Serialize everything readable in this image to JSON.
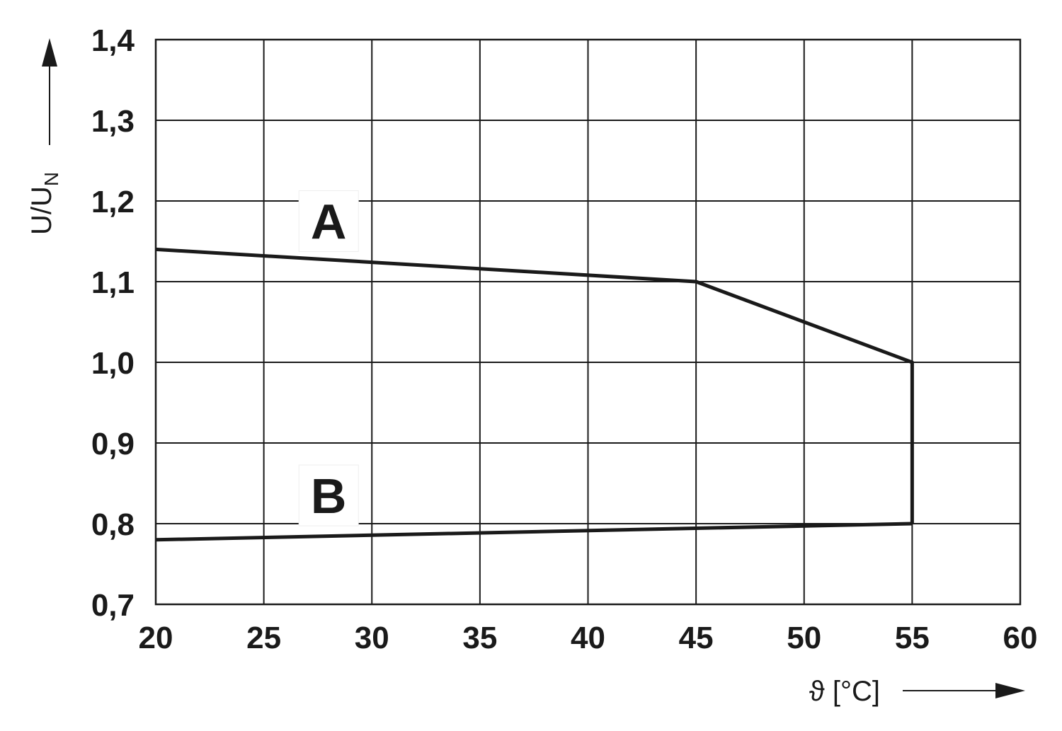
{
  "chart_data": {
    "type": "line",
    "xlabel": "ϑ [°C]",
    "ylabel": "U/U",
    "ylabel_sub": "N",
    "xlim": [
      20,
      60
    ],
    "ylim": [
      0.7,
      1.4
    ],
    "x_ticks": [
      20,
      25,
      30,
      35,
      40,
      45,
      50,
      55,
      60
    ],
    "y_ticks": [
      0.7,
      0.8,
      0.9,
      1.0,
      1.1,
      1.2,
      1.3,
      1.4
    ],
    "x_tick_labels": [
      "20",
      "25",
      "30",
      "35",
      "40",
      "45",
      "50",
      "55",
      "60"
    ],
    "y_tick_labels": [
      "0,7",
      "0,8",
      "0,9",
      "1,0",
      "1,1",
      "1,2",
      "1,3",
      "1,4"
    ],
    "grid": true,
    "series": [
      {
        "name": "A",
        "x": [
          20,
          45,
          55,
          55
        ],
        "y": [
          1.14,
          1.1,
          1.0,
          0.8
        ]
      },
      {
        "name": "B",
        "x": [
          20,
          55
        ],
        "y": [
          0.78,
          0.8
        ]
      }
    ],
    "annotations": [
      {
        "text": "A",
        "x": 28,
        "y": 1.175
      },
      {
        "text": "B",
        "x": 28,
        "y": 0.835
      }
    ]
  }
}
